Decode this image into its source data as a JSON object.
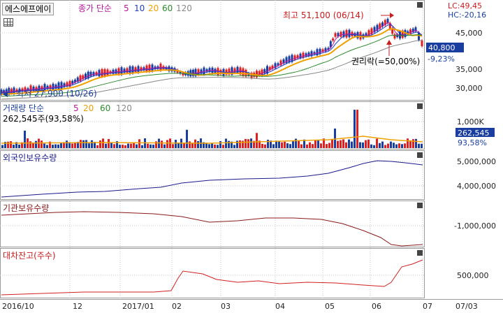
{
  "stock_name": "에스에프에이",
  "price_panel": {
    "ma_label": "종가 단순",
    "ma_periods": [
      "5",
      "10",
      "20",
      "60",
      "120"
    ],
    "ma_colors": [
      "#b5179e",
      "#1e3fbf",
      "#f0a000",
      "#2e8b2e",
      "#888888"
    ],
    "high_note": "최고 51,100 (06/14)",
    "low_note": "최저 27,900 (10/26)",
    "rights_note": "권리락(=50,00%)",
    "lc": "LC:49,45",
    "hc": "HC:-20,16",
    "current_price": "40,800",
    "change_pct": "-9,23%",
    "yticks": [
      "45,000",
      "40,000",
      "35,000",
      "30,000"
    ]
  },
  "volume_panel": {
    "label": "거래량 단순",
    "ma_periods": [
      "5",
      "20",
      "60",
      "120"
    ],
    "ma_colors": [
      "#b5179e",
      "#f0a000",
      "#2e8b2e",
      "#888888"
    ],
    "value_text": "262,545주(93,58%)",
    "ytick": "1,000K",
    "current": "262,545",
    "pct": "93,58%"
  },
  "foreign_panel": {
    "label": "외국인보유수량",
    "yticks": [
      "5,000,000",
      "4,000,000"
    ],
    "color": "#1a1a8c"
  },
  "inst_panel": {
    "label": "기관보유수량",
    "yticks": [
      "-1,000,000"
    ],
    "color": "#8b1a1a"
  },
  "loan_panel": {
    "label": "대차잔고(주수)",
    "yticks": [
      "500,000"
    ],
    "color": "#d02020"
  },
  "x_axis": [
    "2016/10",
    "12",
    "2017/01",
    "02",
    "03",
    "04",
    "05",
    "06",
    "07",
    "07/03"
  ]
}
